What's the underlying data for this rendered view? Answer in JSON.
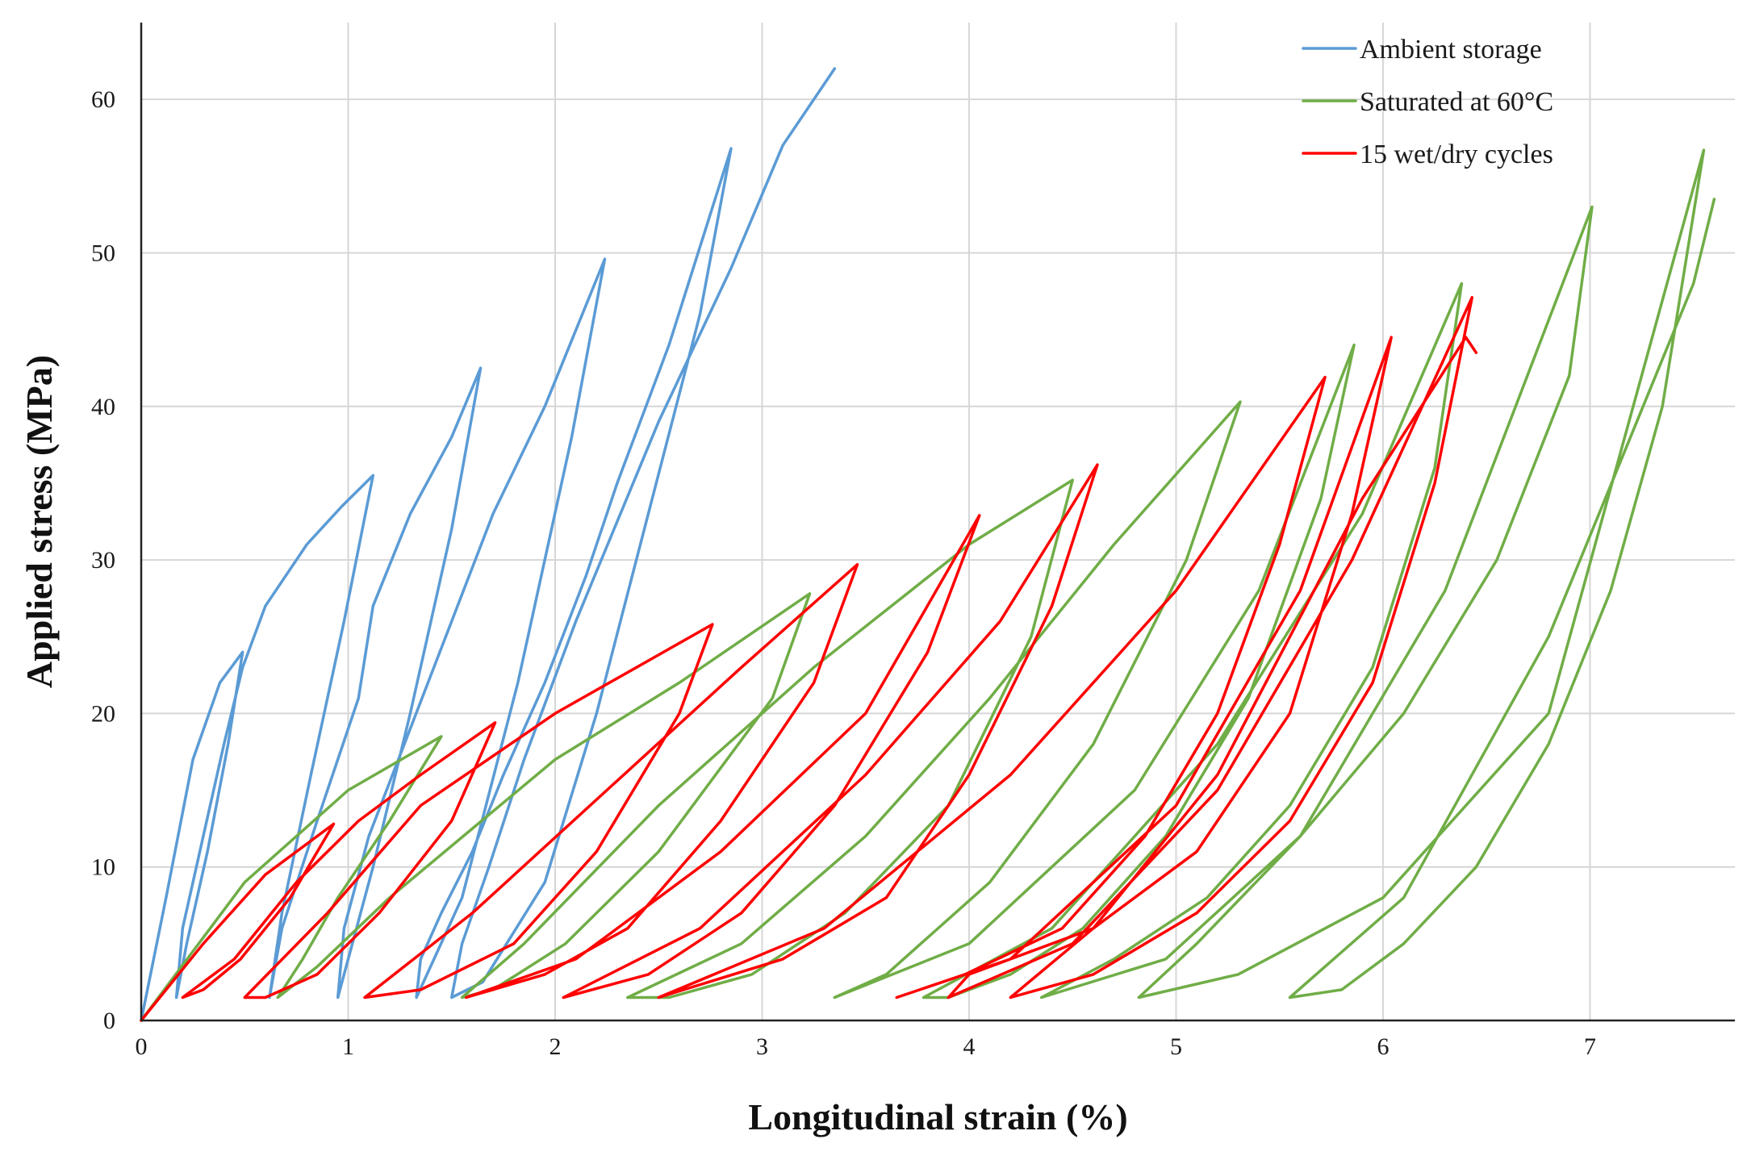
{
  "chart_data": {
    "type": "line",
    "title": "",
    "xlabel": "Longitudinal strain (%)",
    "ylabel": "Applied stress (MPa)",
    "xlim": [
      0,
      7.7
    ],
    "ylim": [
      0,
      65
    ],
    "xticks": [
      0,
      1,
      2,
      3,
      4,
      5,
      6,
      7
    ],
    "yticks": [
      0,
      10,
      20,
      30,
      40,
      50,
      60
    ],
    "grid": true,
    "legend_position": "top-right",
    "series": [
      {
        "name": "Ambient storage",
        "color": "#5b9bd5",
        "x": [
          0,
          0.12,
          0.25,
          0.38,
          0.49,
          0.42,
          0.32,
          0.22,
          0.17,
          0.2,
          0.3,
          0.4,
          0.49,
          0.6,
          0.8,
          0.97,
          1.12,
          0.98,
          0.82,
          0.68,
          0.62,
          0.68,
          0.85,
          1.05,
          1.12,
          1.3,
          1.5,
          1.64,
          1.5,
          1.3,
          1.12,
          0.95,
          0.98,
          1.1,
          1.3,
          1.5,
          1.7,
          1.95,
          2.24,
          2.08,
          1.82,
          1.55,
          1.33,
          1.35,
          1.45,
          1.6,
          1.75,
          1.95,
          2.15,
          2.3,
          2.55,
          2.85,
          2.7,
          2.45,
          2.2,
          1.95,
          1.65,
          1.5,
          1.55,
          1.68,
          1.85,
          2.1,
          2.5,
          2.85,
          3.1,
          3.35
        ],
        "y": [
          0,
          8,
          17,
          22,
          24,
          18,
          11,
          5,
          1.5,
          6,
          12,
          18,
          23,
          27,
          31,
          33.5,
          35.5,
          26,
          16,
          7,
          1.5,
          6,
          13,
          21,
          27,
          33,
          38,
          42.5,
          32,
          20,
          10,
          1.5,
          6,
          12,
          19,
          26,
          33,
          40,
          49.6,
          38,
          22,
          8,
          1.5,
          4,
          7,
          11,
          16,
          22,
          29,
          35,
          44,
          56.8,
          46,
          33,
          20,
          9,
          2.5,
          1.5,
          5,
          10,
          17,
          26,
          39,
          49,
          57,
          62
        ]
      },
      {
        "name": "Saturated at 60°C",
        "color": "#70ad47",
        "x": [
          0,
          0.5,
          1,
          1.45,
          1.2,
          0.95,
          0.78,
          0.66,
          0.85,
          1.2,
          1.6,
          2.0,
          2.6,
          3.23,
          3.05,
          2.5,
          2.05,
          1.7,
          1.55,
          1.85,
          2.5,
          3.25,
          4.0,
          4.5,
          4.3,
          3.9,
          3.4,
          2.95,
          2.55,
          2.35,
          2.9,
          3.5,
          4.1,
          4.7,
          5.31,
          5.05,
          4.6,
          4.1,
          3.6,
          3.35,
          4.0,
          4.8,
          5.4,
          5.86,
          5.7,
          5.35,
          4.95,
          4.55,
          4.2,
          3.9,
          3.78,
          4.4,
          5.2,
          5.9,
          6.38,
          6.25,
          5.95,
          5.55,
          5.15,
          4.7,
          4.35,
          4.95,
          5.6,
          6.3,
          7.01,
          6.9,
          6.55,
          6.1,
          5.6,
          5.1,
          4.82,
          5.3,
          6.0,
          6.8,
          7.55,
          7.35,
          7.1,
          6.8,
          6.45,
          6.1,
          5.8,
          5.55,
          6.1,
          6.8,
          7.5,
          7.6
        ],
        "y": [
          0,
          9,
          15,
          18.5,
          13,
          8,
          4,
          1.5,
          3.5,
          8,
          12.5,
          17,
          22,
          27.8,
          21,
          11,
          5,
          2,
          1.5,
          5,
          14,
          23,
          31,
          35.2,
          25,
          14,
          7,
          3,
          1.5,
          1.5,
          5,
          12,
          21,
          31,
          40.3,
          30,
          18,
          9,
          3,
          1.5,
          5,
          15,
          28,
          44,
          34,
          21,
          12,
          6,
          3,
          1.5,
          1.5,
          6,
          18,
          33,
          48,
          36,
          23,
          14,
          8,
          4,
          1.5,
          4,
          12,
          28,
          53,
          42,
          30,
          20,
          12,
          5,
          1.5,
          3,
          8,
          20,
          56.7,
          40,
          28,
          18,
          10,
          5,
          2,
          1.5,
          8,
          25,
          48,
          53.5
        ]
      },
      {
        "name": "15 wet/dry cycles",
        "color": "#ff0000",
        "x": [
          0,
          0.3,
          0.6,
          0.93,
          0.72,
          0.48,
          0.3,
          0.2,
          0.45,
          0.75,
          1.05,
          1.35,
          1.71,
          1.5,
          1.15,
          0.85,
          0.6,
          0.5,
          0.9,
          1.35,
          2.0,
          2.76,
          2.6,
          2.2,
          1.8,
          1.35,
          1.08,
          1.6,
          2.25,
          2.9,
          3.46,
          3.25,
          2.8,
          2.35,
          1.95,
          1.57,
          2.1,
          2.8,
          3.5,
          4.05,
          3.8,
          3.35,
          2.9,
          2.45,
          2.04,
          2.7,
          3.5,
          4.15,
          4.62,
          4.4,
          4.0,
          3.6,
          3.1,
          2.5,
          3.3,
          4.2,
          5.0,
          5.72,
          5.5,
          5.2,
          4.85,
          4.45,
          3.98,
          3.65,
          4.2,
          5.0,
          5.6,
          6.04,
          5.85,
          5.55,
          5.1,
          4.6,
          4.0,
          3.9,
          4.5,
          5.2,
          5.85,
          6.43,
          6.25,
          5.95,
          5.55,
          5.1,
          4.6,
          4.2,
          4.6,
          5.2,
          5.9,
          6.4,
          6.45
        ],
        "y": [
          0,
          5,
          9.5,
          12.8,
          8,
          4,
          2,
          1.5,
          4,
          9,
          13,
          16,
          19.4,
          13,
          7,
          3,
          1.5,
          1.5,
          7,
          14,
          20,
          25.8,
          20,
          11,
          5,
          2,
          1.5,
          7,
          15,
          23,
          29.7,
          22,
          13,
          6,
          3,
          1.5,
          4,
          11,
          20,
          32.9,
          24,
          14,
          7,
          3,
          1.5,
          6,
          16,
          26,
          36.2,
          27,
          16,
          8,
          4,
          1.5,
          6,
          16,
          28,
          41.9,
          31,
          20,
          12,
          6,
          3,
          1.5,
          4,
          14,
          28,
          44.5,
          33,
          20,
          11,
          6,
          3,
          1.5,
          5,
          15,
          30,
          47.1,
          35,
          22,
          13,
          7,
          3,
          1.5,
          6,
          16,
          34,
          44.5,
          43.5
        ]
      }
    ]
  }
}
